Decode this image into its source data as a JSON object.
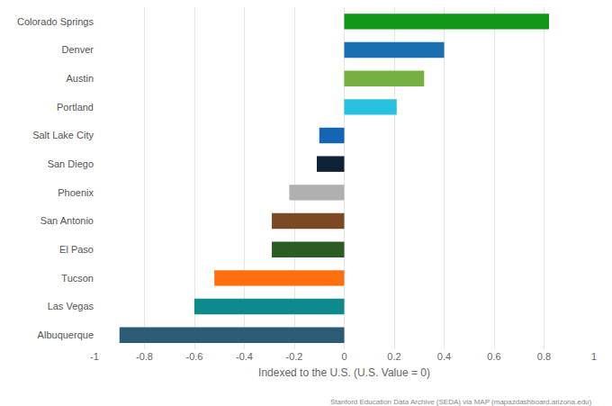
{
  "chart_data": {
    "type": "bar",
    "orientation": "horizontal",
    "categories": [
      "Colorado Springs",
      "Denver",
      "Austin",
      "Portland",
      "Salt Lake City",
      "San Diego",
      "Phoenix",
      "San Antonio",
      "El Paso",
      "Tucson",
      "Las Vegas",
      "Albuquerque"
    ],
    "values": [
      0.82,
      0.4,
      0.32,
      0.21,
      -0.1,
      -0.11,
      -0.22,
      -0.29,
      -0.29,
      -0.52,
      -0.6,
      -0.9
    ],
    "colors": [
      "#109618",
      "#1a6fb0",
      "#76b041",
      "#29c1e0",
      "#1565b5",
      "#0d2137",
      "#b0b0b0",
      "#7b4a24",
      "#2b5d22",
      "#ff6f0f",
      "#0e8a8c",
      "#2c5b75"
    ],
    "x_label": "Indexed to the U.S. (U.S. Value = 0)",
    "xlim": [
      -1,
      1
    ],
    "xticks": [
      -1,
      -0.8,
      -0.6,
      -0.4,
      -0.2,
      0,
      0.2,
      0.4,
      0.6,
      0.8,
      1
    ],
    "grid": true,
    "annotations": [
      "Stanford Education Data Archive (SEDA) via MAP (mapazdashboard.arizona.edu)"
    ]
  }
}
